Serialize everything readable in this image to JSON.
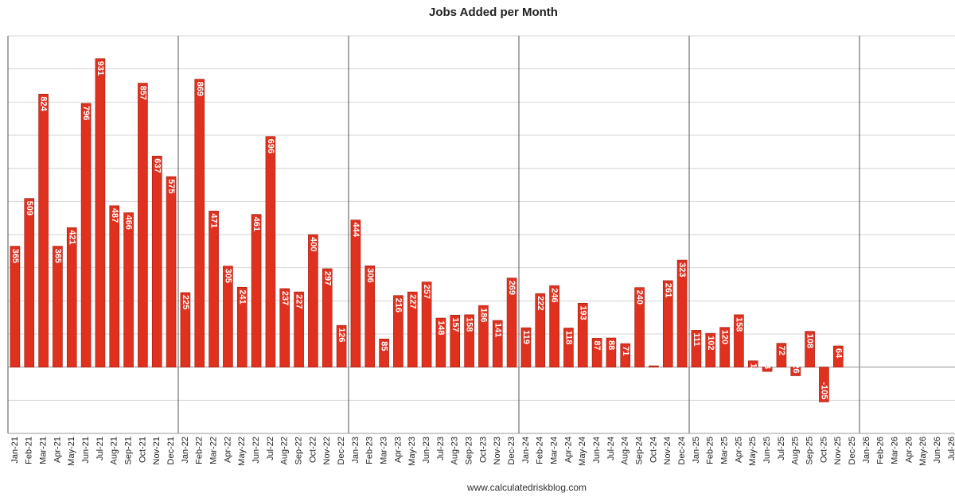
{
  "chart_data": {
    "type": "bar",
    "title": "Jobs Added per Month",
    "source": "www.calculatedriskblog.com",
    "categories": [
      "Jan-21",
      "Feb-21",
      "Mar-21",
      "Apr-21",
      "May-21",
      "Jun-21",
      "Jul-21",
      "Aug-21",
      "Sep-21",
      "Oct-21",
      "Nov-21",
      "Dec-21",
      "Jan-22",
      "Feb-22",
      "Mar-22",
      "Apr-22",
      "May-22",
      "Jun-22",
      "Jul-22",
      "Aug-22",
      "Sep-22",
      "Oct-22",
      "Nov-22",
      "Dec-22",
      "Jan-23",
      "Feb-23",
      "Mar-23",
      "Apr-23",
      "May-23",
      "Jun-23",
      "Jul-23",
      "Aug-23",
      "Sep-23",
      "Oct-23",
      "Nov-23",
      "Dec-23",
      "Jan-24",
      "Feb-24",
      "Mar-24",
      "Apr-24",
      "May-24",
      "Jun-24",
      "Jul-24",
      "Aug-24",
      "Sep-24",
      "Oct-24",
      "Nov-24",
      "Dec-24",
      "Jan-25",
      "Feb-25",
      "Mar-25",
      "Apr-25",
      "May-25",
      "Jun-25",
      "Jul-25",
      "Aug-25",
      "Sep-25",
      "Oct-25",
      "Nov-25",
      "Dec-25",
      "Jan-26",
      "Feb-26",
      "Mar-26",
      "Apr-26",
      "May-26",
      "Jun-26",
      "Jul-26"
    ],
    "values": [
      365,
      509,
      824,
      365,
      421,
      796,
      931,
      487,
      466,
      857,
      637,
      575,
      225,
      869,
      471,
      305,
      241,
      461,
      696,
      237,
      227,
      400,
      297,
      126,
      444,
      306,
      85,
      216,
      227,
      257,
      148,
      157,
      158,
      186,
      141,
      269,
      119,
      222,
      246,
      118,
      193,
      87,
      88,
      71,
      240,
      4,
      261,
      323,
      111,
      102,
      120,
      158,
      19,
      -13,
      72,
      -26,
      108,
      -105,
      64,
      null,
      null,
      null,
      null,
      null,
      null,
      null,
      null
    ],
    "color": "#e0301e",
    "ylim": [
      -200,
      1000
    ],
    "yticks": [
      -200,
      -100,
      0,
      100,
      200,
      300,
      400,
      500,
      600,
      700,
      800,
      900,
      1000
    ],
    "grid": true
  }
}
